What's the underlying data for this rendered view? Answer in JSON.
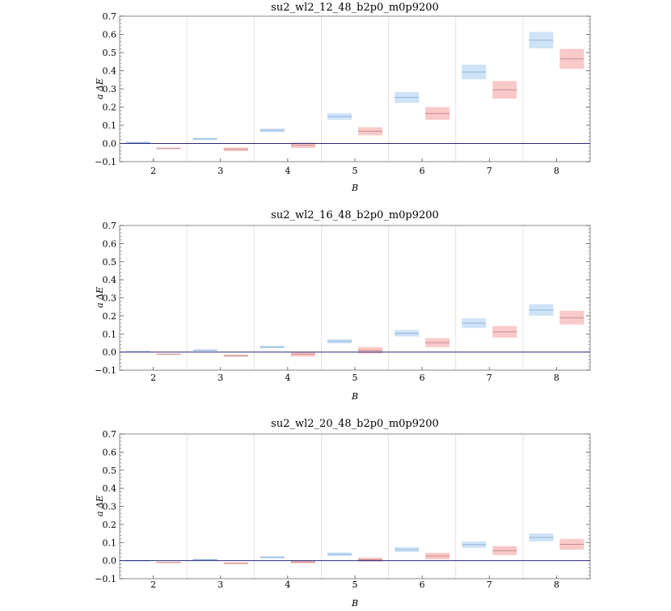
{
  "colors": {
    "series_blue_fill": "#cfe3f7",
    "series_blue_line": "#8fb3d9",
    "series_red_fill": "#f9c9c9",
    "series_red_line": "#c98a8a",
    "zero_line": "#2a2a7a",
    "grid": "#dddddd",
    "frame": "#888888"
  },
  "chart_data": [
    {
      "type": "bar",
      "title": "su2_wl2_12_48_b2p0_m0p9200",
      "xlabel": "B",
      "ylabel": "a ΔE",
      "ylim": [
        -0.1,
        0.7
      ],
      "yticks": [
        "−0.1",
        "0.0",
        "0.1",
        "0.2",
        "0.3",
        "0.4",
        "0.5",
        "0.6",
        "0.7"
      ],
      "categories": [
        "2",
        "3",
        "4",
        "5",
        "6",
        "7",
        "8"
      ],
      "series": [
        {
          "name": "blue",
          "values": [
            0.005,
            0.025,
            0.072,
            0.148,
            0.253,
            0.393,
            0.568
          ],
          "errors": [
            0.004,
            0.006,
            0.01,
            0.018,
            0.03,
            0.04,
            0.045
          ]
        },
        {
          "name": "red",
          "values": [
            -0.027,
            -0.032,
            -0.01,
            0.067,
            0.165,
            0.295,
            0.465
          ],
          "errors": [
            0.004,
            0.01,
            0.015,
            0.022,
            0.035,
            0.048,
            0.055
          ]
        }
      ]
    },
    {
      "type": "bar",
      "title": "su2_wl2_16_48_b2p0_m0p9200",
      "xlabel": "B",
      "ylabel": "a ΔE",
      "ylim": [
        -0.1,
        0.7
      ],
      "yticks": [
        "−0.1",
        "0.0",
        "0.1",
        "0.2",
        "0.3",
        "0.4",
        "0.5",
        "0.6",
        "0.7"
      ],
      "categories": [
        "2",
        "3",
        "4",
        "5",
        "6",
        "7",
        "8"
      ],
      "series": [
        {
          "name": "blue",
          "values": [
            0.002,
            0.01,
            0.028,
            0.06,
            0.104,
            0.16,
            0.233
          ],
          "errors": [
            0.003,
            0.005,
            0.007,
            0.012,
            0.018,
            0.027,
            0.032
          ]
        },
        {
          "name": "red",
          "values": [
            -0.012,
            -0.02,
            -0.012,
            0.01,
            0.052,
            0.112,
            0.19
          ],
          "errors": [
            0.003,
            0.006,
            0.012,
            0.018,
            0.025,
            0.032,
            0.038
          ]
        }
      ]
    },
    {
      "type": "bar",
      "title": "su2_wl2_20_48_b2p0_m0p9200",
      "xlabel": "B",
      "ylabel": "a ΔE",
      "ylim": [
        -0.1,
        0.7
      ],
      "yticks": [
        "−0.1",
        "0.0",
        "0.1",
        "0.2",
        "0.3",
        "0.4",
        "0.5",
        "0.6",
        "0.7"
      ],
      "categories": [
        "2",
        "3",
        "4",
        "5",
        "6",
        "7",
        "8"
      ],
      "series": [
        {
          "name": "blue",
          "values": [
            0.0,
            0.005,
            0.018,
            0.035,
            0.061,
            0.088,
            0.128
          ],
          "errors": [
            0.002,
            0.004,
            0.006,
            0.01,
            0.014,
            0.018,
            0.022
          ]
        },
        {
          "name": "red",
          "values": [
            -0.01,
            -0.015,
            -0.008,
            0.005,
            0.025,
            0.055,
            0.09
          ],
          "errors": [
            0.002,
            0.005,
            0.008,
            0.012,
            0.018,
            0.025,
            0.03
          ]
        }
      ]
    }
  ]
}
